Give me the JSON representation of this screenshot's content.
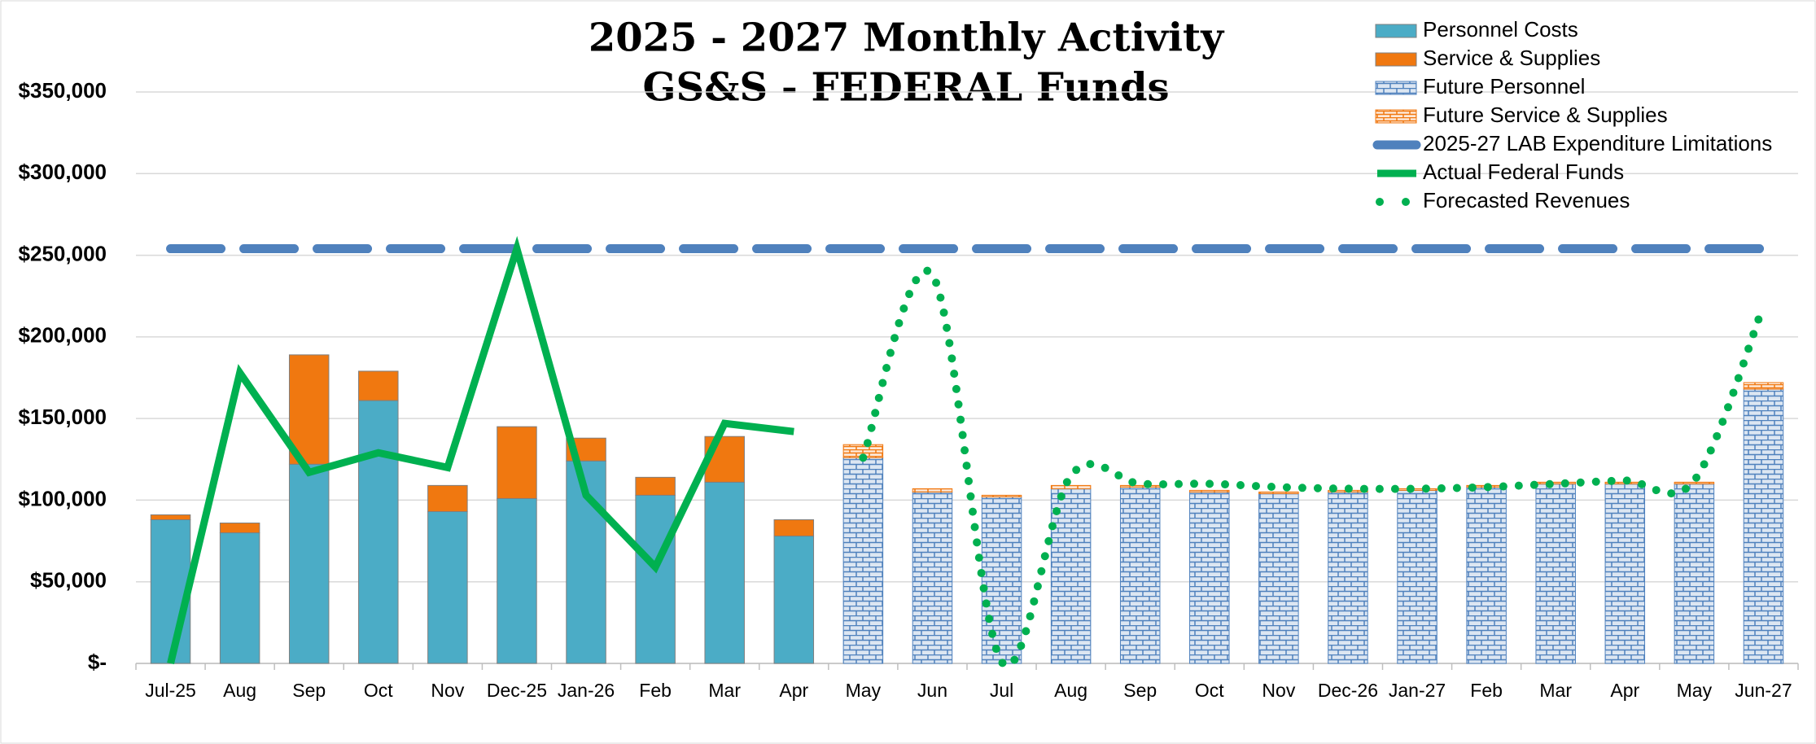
{
  "chart_data": {
    "type": "combo",
    "title": "2025 - 2027 Monthly Activity",
    "subtitle": "GS&S - FEDERAL Funds",
    "categories": [
      "Jul-25",
      "Aug",
      "Sep",
      "Oct",
      "Nov",
      "Dec-25",
      "Jan-26",
      "Feb",
      "Mar",
      "Apr",
      "May",
      "Jun",
      "Jul",
      "Aug",
      "Sep",
      "Oct",
      "Nov",
      "Dec-26",
      "Jan-27",
      "Feb",
      "Mar",
      "Apr",
      "May",
      "Jun-27"
    ],
    "ylim": [
      0,
      350000
    ],
    "yticks": [
      {
        "value": 0,
        "label": "$-"
      },
      {
        "value": 50000,
        "label": "$50,000"
      },
      {
        "value": 100000,
        "label": "$100,000"
      },
      {
        "value": 150000,
        "label": "$150,000"
      },
      {
        "value": 200000,
        "label": "$200,000"
      },
      {
        "value": 250000,
        "label": "$250,000"
      },
      {
        "value": 300000,
        "label": "$300,000"
      },
      {
        "value": 350000,
        "label": "$350,000"
      }
    ],
    "grid": true,
    "legend": "top-right",
    "series": [
      {
        "name": "Personnel Costs",
        "type": "bar",
        "color": "#4bacc6",
        "values": [
          88000,
          80000,
          122000,
          161000,
          93000,
          101000,
          124000,
          103000,
          111000,
          78000,
          null,
          null,
          null,
          null,
          null,
          null,
          null,
          null,
          null,
          null,
          null,
          null,
          null,
          null
        ]
      },
      {
        "name": "Service & Supplies",
        "type": "bar",
        "color": "#f07810",
        "values": [
          3000,
          6000,
          67000,
          18000,
          16000,
          44000,
          14000,
          11000,
          28000,
          10000,
          null,
          null,
          null,
          null,
          null,
          null,
          null,
          null,
          null,
          null,
          null,
          null,
          null,
          null
        ]
      },
      {
        "name": "Future Personnel",
        "type": "bar",
        "pattern": "brick",
        "color": "#4f81bd",
        "values": [
          null,
          null,
          null,
          null,
          null,
          null,
          null,
          null,
          null,
          null,
          126000,
          105000,
          102000,
          107000,
          108000,
          105000,
          104000,
          105000,
          106000,
          108000,
          110000,
          110000,
          110000,
          168000
        ]
      },
      {
        "name": "Future Service & Supplies",
        "type": "bar",
        "pattern": "brick",
        "color": "#f07810",
        "values": [
          null,
          null,
          null,
          null,
          null,
          null,
          null,
          null,
          null,
          null,
          8000,
          2000,
          1000,
          2000,
          1000,
          1000,
          1000,
          1000,
          1000,
          1000,
          1000,
          1000,
          1000,
          4000
        ]
      },
      {
        "name": "2025-27 LAB Expenditure Limitations",
        "type": "line",
        "style": "dashed",
        "color": "#4f81bd",
        "values": [
          254000,
          254000,
          254000,
          254000,
          254000,
          254000,
          254000,
          254000,
          254000,
          254000,
          254000,
          254000,
          254000,
          254000,
          254000,
          254000,
          254000,
          254000,
          254000,
          254000,
          254000,
          254000,
          254000,
          254000
        ]
      },
      {
        "name": "Actual Federal Funds",
        "type": "line",
        "style": "solid",
        "color": "#00b050",
        "values": [
          0,
          178000,
          117000,
          129000,
          120000,
          254000,
          103000,
          59000,
          147000,
          142000,
          null,
          null,
          null,
          null,
          null,
          null,
          null,
          null,
          null,
          null,
          null,
          null,
          null,
          null
        ]
      },
      {
        "name": "Forecasted Revenues",
        "type": "line",
        "style": "dotted",
        "smooth": true,
        "color": "#00b050",
        "values": [
          null,
          null,
          null,
          null,
          null,
          null,
          null,
          null,
          null,
          null,
          126000,
          238000,
          1000,
          115000,
          110000,
          110000,
          108000,
          107000,
          107000,
          108000,
          110000,
          112000,
          112000,
          219000
        ]
      }
    ]
  }
}
